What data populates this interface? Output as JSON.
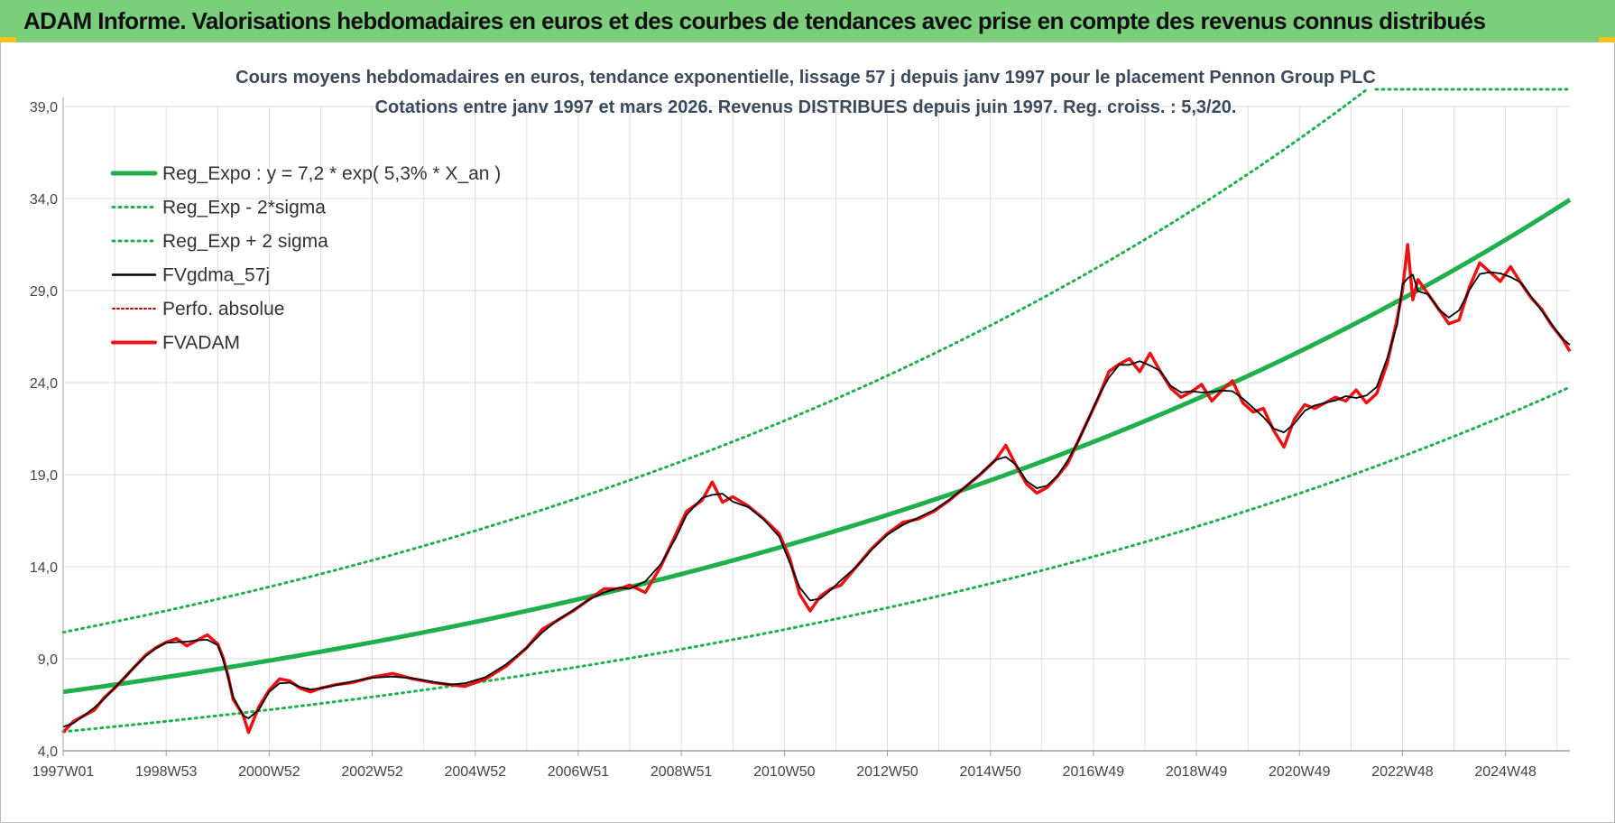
{
  "banner": {
    "title": "ADAM Informe. Valorisations hebdomadaires en euros et des courbes de tendances avec prise en compte des revenus connus distribués"
  },
  "colors": {
    "banner_bg": "#7ccf7a",
    "reg_expo": "#1fb04c",
    "sigma": "#1fb04c",
    "fvgdma": "#000000",
    "perfo": "#c00000",
    "fvadam": "#ee1111",
    "grid": "#d9dde3"
  },
  "chart_data": {
    "type": "line",
    "title": "Cours moyens hebdomadaires en euros, tendance exponentielle, lissage 57 j depuis janv 1997 pour le placement Pennon Group PLC",
    "subtitle": "Cotations entre janv 1997 et mars 2026. Revenus DISTRIBUES depuis juin 1997. Reg. croiss. : 5,3/20.",
    "xlabel": "",
    "ylabel": "",
    "ylim": [
      4,
      39
    ],
    "grid": true,
    "legend_position": "top-left",
    "y_ticks": [
      "4,0",
      "9,0",
      "14,0",
      "19,0",
      "24,0",
      "29,0",
      "34,0",
      "39,0"
    ],
    "x_ticks": [
      "1997W01",
      "1998W53",
      "2000W52",
      "2002W52",
      "2004W52",
      "2006W51",
      "2008W51",
      "2010W50",
      "2012W50",
      "2014W50",
      "2016W49",
      "2018W49",
      "2020W49",
      "2022W48",
      "2024W48"
    ],
    "x_tick_years": [
      1997.0,
      1999.0,
      2001.0,
      2003.0,
      2005.0,
      2007.0,
      2009.0,
      2011.0,
      2013.0,
      2015.0,
      2017.0,
      2019.0,
      2021.0,
      2023.0,
      2025.0
    ],
    "x_range": [
      1997.0,
      2026.25
    ],
    "regression": {
      "a": 7.2,
      "rate": 0.053,
      "x0": 1997.0
    },
    "series": [
      {
        "name": "Reg_Expo : y = 7,2 * exp( 5,3% *  X_an )",
        "style": "solid-thick",
        "color": "#1fb04c"
      },
      {
        "name": "Reg_Exp - 2*sigma",
        "style": "dotted",
        "color": "#1fb04c",
        "factor": 0.7
      },
      {
        "name": "Reg_Exp + 2 sigma",
        "style": "dotted",
        "color": "#1fb04c",
        "factor": 1.45
      },
      {
        "name": "FVgdma_57j",
        "style": "solid",
        "color": "#000000"
      },
      {
        "name": "Perfo. absolue",
        "style": "dotted",
        "color": "#c00000"
      },
      {
        "name": "FVADAM",
        "style": "solid-thick",
        "color": "#ee1111",
        "points": [
          [
            1997.0,
            5.0
          ],
          [
            1997.2,
            5.6
          ],
          [
            1997.4,
            5.9
          ],
          [
            1997.6,
            6.2
          ],
          [
            1997.8,
            6.9
          ],
          [
            1998.0,
            7.4
          ],
          [
            1998.2,
            8.0
          ],
          [
            1998.4,
            8.6
          ],
          [
            1998.6,
            9.2
          ],
          [
            1998.8,
            9.6
          ],
          [
            1999.0,
            9.9
          ],
          [
            1999.2,
            10.1
          ],
          [
            1999.4,
            9.7
          ],
          [
            1999.6,
            10.0
          ],
          [
            1999.8,
            10.3
          ],
          [
            2000.0,
            9.8
          ],
          [
            2000.1,
            9.1
          ],
          [
            2000.2,
            8.1
          ],
          [
            2000.3,
            6.8
          ],
          [
            2000.5,
            5.9
          ],
          [
            2000.6,
            5.0
          ],
          [
            2000.8,
            6.4
          ],
          [
            2001.0,
            7.3
          ],
          [
            2001.2,
            7.9
          ],
          [
            2001.4,
            7.8
          ],
          [
            2001.6,
            7.4
          ],
          [
            2001.8,
            7.2
          ],
          [
            2002.0,
            7.4
          ],
          [
            2002.3,
            7.6
          ],
          [
            2002.6,
            7.7
          ],
          [
            2003.0,
            8.0
          ],
          [
            2003.4,
            8.2
          ],
          [
            2003.8,
            7.9
          ],
          [
            2004.2,
            7.7
          ],
          [
            2004.5,
            7.6
          ],
          [
            2004.8,
            7.5
          ],
          [
            2005.2,
            7.9
          ],
          [
            2005.6,
            8.6
          ],
          [
            2006.0,
            9.6
          ],
          [
            2006.3,
            10.6
          ],
          [
            2006.6,
            11.1
          ],
          [
            2006.9,
            11.6
          ],
          [
            2007.2,
            12.2
          ],
          [
            2007.5,
            12.8
          ],
          [
            2007.8,
            12.8
          ],
          [
            2008.0,
            13.0
          ],
          [
            2008.3,
            12.6
          ],
          [
            2008.6,
            14.0
          ],
          [
            2008.9,
            15.8
          ],
          [
            2009.1,
            17.0
          ],
          [
            2009.4,
            17.6
          ],
          [
            2009.6,
            18.6
          ],
          [
            2009.8,
            17.5
          ],
          [
            2010.0,
            17.8
          ],
          [
            2010.3,
            17.3
          ],
          [
            2010.6,
            16.6
          ],
          [
            2010.9,
            15.8
          ],
          [
            2011.1,
            14.5
          ],
          [
            2011.3,
            12.5
          ],
          [
            2011.5,
            11.6
          ],
          [
            2011.7,
            12.4
          ],
          [
            2011.9,
            12.8
          ],
          [
            2012.1,
            13.0
          ],
          [
            2012.4,
            14.0
          ],
          [
            2012.7,
            15.0
          ],
          [
            2013.0,
            15.8
          ],
          [
            2013.3,
            16.4
          ],
          [
            2013.6,
            16.6
          ],
          [
            2013.9,
            17.0
          ],
          [
            2014.2,
            17.6
          ],
          [
            2014.5,
            18.3
          ],
          [
            2014.8,
            19.0
          ],
          [
            2015.1,
            19.8
          ],
          [
            2015.3,
            20.6
          ],
          [
            2015.5,
            19.5
          ],
          [
            2015.7,
            18.5
          ],
          [
            2015.9,
            18.0
          ],
          [
            2016.1,
            18.3
          ],
          [
            2016.3,
            18.9
          ],
          [
            2016.5,
            19.6
          ],
          [
            2016.7,
            20.8
          ],
          [
            2016.9,
            22.0
          ],
          [
            2017.1,
            23.2
          ],
          [
            2017.3,
            24.6
          ],
          [
            2017.5,
            25.0
          ],
          [
            2017.7,
            25.3
          ],
          [
            2017.9,
            24.6
          ],
          [
            2018.1,
            25.6
          ],
          [
            2018.3,
            24.6
          ],
          [
            2018.5,
            23.7
          ],
          [
            2018.7,
            23.2
          ],
          [
            2018.9,
            23.5
          ],
          [
            2019.1,
            23.9
          ],
          [
            2019.3,
            23.0
          ],
          [
            2019.5,
            23.6
          ],
          [
            2019.7,
            24.1
          ],
          [
            2019.9,
            22.9
          ],
          [
            2020.1,
            22.4
          ],
          [
            2020.3,
            22.6
          ],
          [
            2020.5,
            21.4
          ],
          [
            2020.7,
            20.5
          ],
          [
            2020.9,
            22.0
          ],
          [
            2021.1,
            22.8
          ],
          [
            2021.3,
            22.6
          ],
          [
            2021.5,
            22.9
          ],
          [
            2021.7,
            23.2
          ],
          [
            2021.9,
            23.0
          ],
          [
            2022.1,
            23.6
          ],
          [
            2022.3,
            22.9
          ],
          [
            2022.5,
            23.4
          ],
          [
            2022.7,
            25.0
          ],
          [
            2022.9,
            27.5
          ],
          [
            2023.0,
            29.0
          ],
          [
            2023.1,
            31.5
          ],
          [
            2023.2,
            28.5
          ],
          [
            2023.3,
            29.6
          ],
          [
            2023.5,
            28.8
          ],
          [
            2023.7,
            28.0
          ],
          [
            2023.9,
            27.2
          ],
          [
            2024.1,
            27.4
          ],
          [
            2024.3,
            29.2
          ],
          [
            2024.5,
            30.5
          ],
          [
            2024.7,
            30.0
          ],
          [
            2024.9,
            29.5
          ],
          [
            2025.1,
            30.3
          ],
          [
            2025.3,
            29.4
          ],
          [
            2025.5,
            28.6
          ],
          [
            2025.7,
            28.0
          ],
          [
            2025.9,
            27.1
          ],
          [
            2026.1,
            26.4
          ],
          [
            2026.25,
            25.7
          ]
        ]
      }
    ]
  }
}
